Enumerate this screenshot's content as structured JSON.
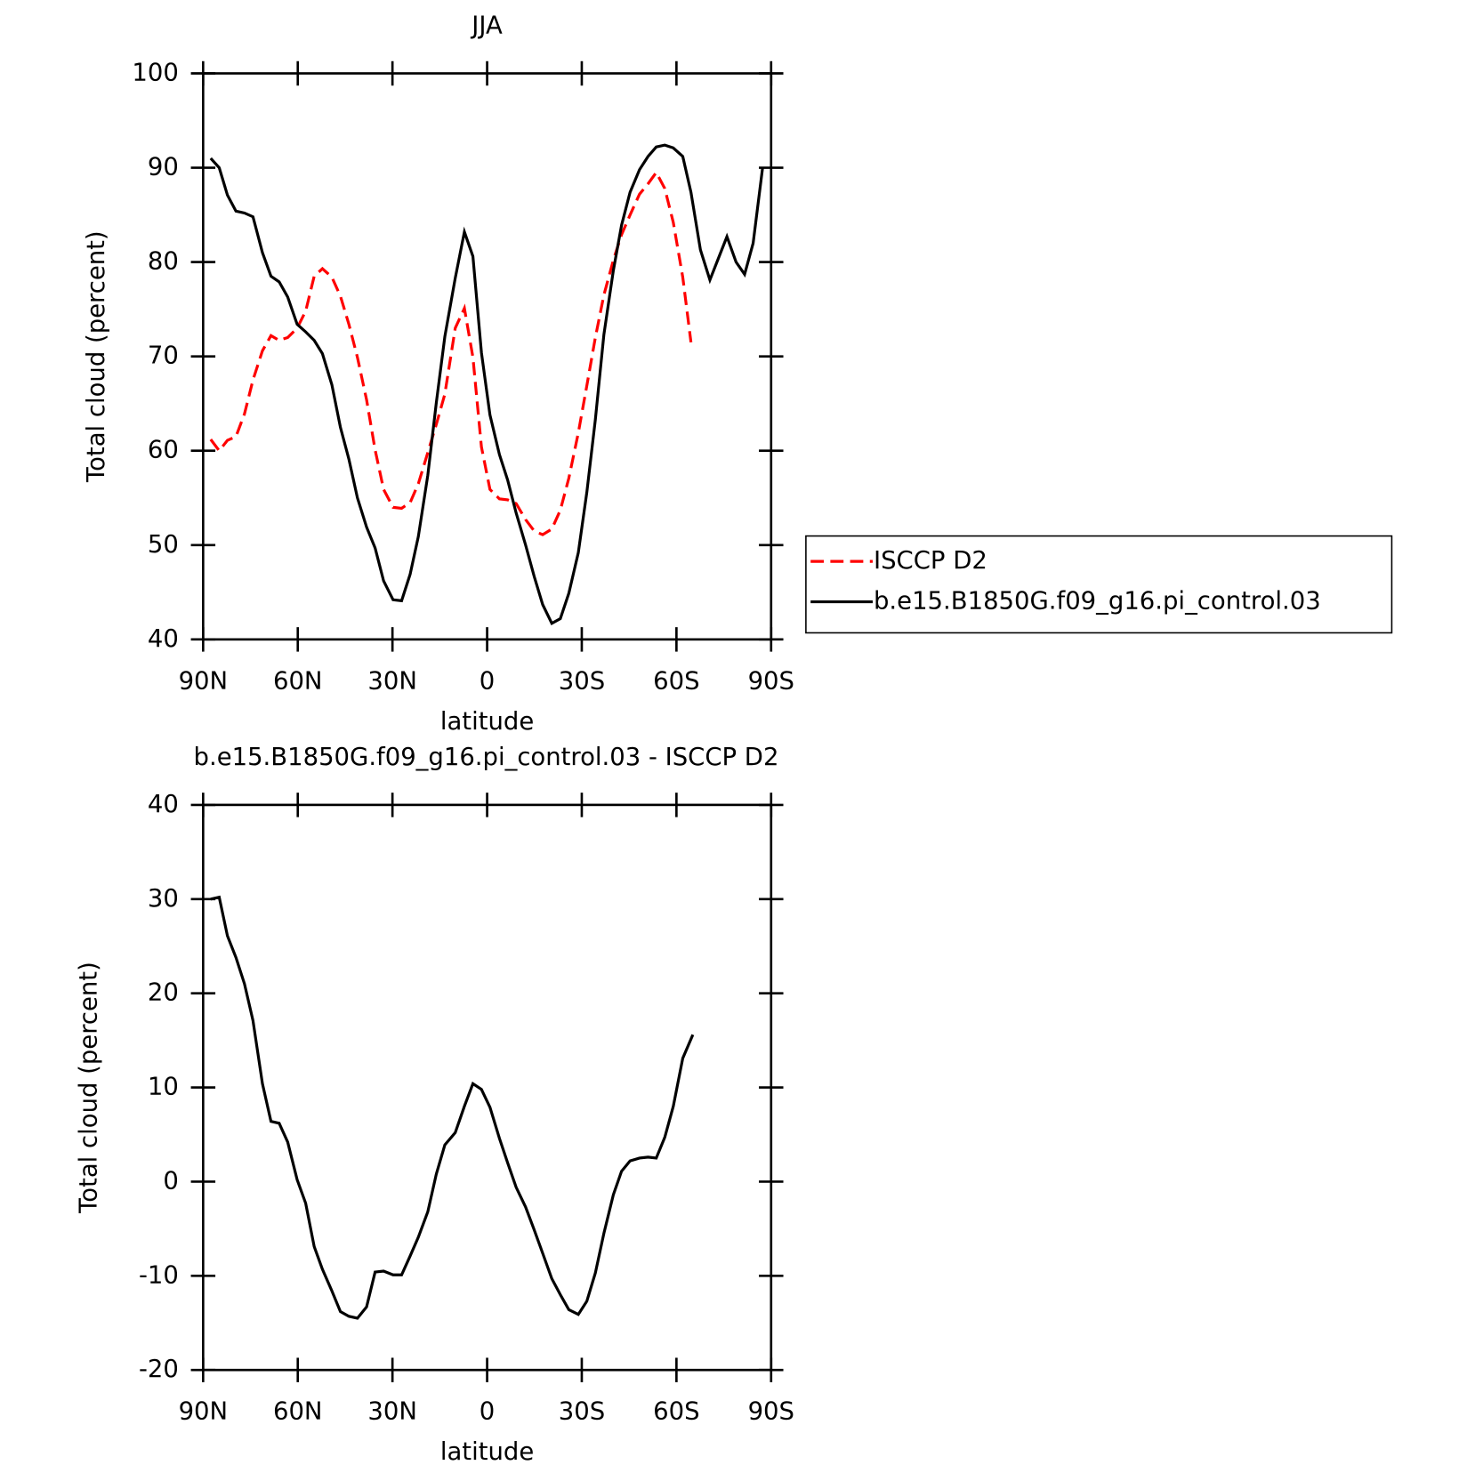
{
  "chart_data": [
    {
      "type": "line",
      "title": "JJA",
      "x_label": "latitude",
      "y_label": "Total cloud (percent)",
      "x": [
        87.6,
        84.9,
        82.3,
        79.6,
        76.9,
        74.2,
        71.2,
        68.5,
        65.9,
        63.2,
        60.2,
        57.5,
        54.8,
        52.2,
        49.2,
        46.5,
        43.8,
        41.1,
        38.2,
        35.5,
        32.8,
        29.8,
        27.1,
        24.4,
        21.8,
        18.8,
        16.1,
        13.4,
        10.1,
        7.2,
        4.5,
        1.8,
        -0.9,
        -3.9,
        -6.5,
        -9.2,
        -12.2,
        -14.9,
        -17.6,
        -20.5,
        -23.2,
        -25.9,
        -28.9,
        -31.6,
        -34.3,
        -37.0,
        -40.0,
        -42.6,
        -45.3,
        -48.3,
        -51.0,
        -53.6,
        -56.3,
        -59.0,
        -62.0,
        -64.6,
        -67.6,
        -70.6,
        -73.3,
        -76.0,
        -78.9,
        -81.6,
        -84.3,
        -87.3
      ],
      "series": [
        {
          "name": "ISCCP D2",
          "color": "#ff0000",
          "style": "dashed",
          "values": [
            61.2,
            60.0,
            61.1,
            61.5,
            63.9,
            67.5,
            70.6,
            72.2,
            71.7,
            72.0,
            73.0,
            74.8,
            78.5,
            79.3,
            78.4,
            76.4,
            73.4,
            69.9,
            65.4,
            60.1,
            55.9,
            54.0,
            53.9,
            54.5,
            56.5,
            59.8,
            62.8,
            66.0,
            73.0,
            75.1,
            69.9,
            60.4,
            55.9,
            54.9,
            54.8,
            54.4,
            52.7,
            51.5,
            51.1,
            51.7,
            53.7,
            57.1,
            61.9,
            66.9,
            72.0,
            76.5,
            80.2,
            82.9,
            85.0,
            87.2,
            88.3,
            89.5,
            87.8,
            84.2,
            78.4,
            71.5,
            null,
            null,
            null,
            null,
            null,
            null,
            null,
            null
          ]
        },
        {
          "name": "b.e15.B1850G.f09_g16.pi_control.03",
          "color": "#000000",
          "style": "solid",
          "values": [
            91.0,
            90.0,
            87.1,
            85.4,
            85.2,
            84.8,
            81.0,
            78.5,
            77.9,
            76.3,
            73.4,
            72.6,
            71.7,
            70.3,
            67.0,
            62.5,
            59.1,
            55.0,
            51.9,
            49.7,
            46.2,
            44.2,
            44.1,
            46.9,
            50.9,
            57.4,
            65.1,
            72.1,
            78.3,
            83.2,
            80.6,
            70.4,
            63.8,
            59.6,
            56.9,
            53.4,
            50.0,
            46.7,
            43.7,
            41.7,
            42.2,
            44.9,
            49.2,
            55.6,
            63.3,
            72.3,
            79.1,
            83.9,
            87.4,
            89.8,
            91.2,
            92.2,
            92.4,
            92.1,
            91.2,
            87.4,
            81.3,
            78.1,
            80.4,
            82.7,
            80.0,
            78.7,
            82.0,
            90.0
          ]
        }
      ],
      "xlim": [
        90,
        -90
      ],
      "xticks": [
        {
          "value": 90,
          "label": "90N"
        },
        {
          "value": 60,
          "label": "60N"
        },
        {
          "value": 30,
          "label": "30N"
        },
        0,
        {
          "value": -30,
          "label": "30S"
        },
        {
          "value": -60,
          "label": "60S"
        },
        {
          "value": -90,
          "label": "90S"
        }
      ],
      "ylim": [
        40,
        100
      ],
      "yticks": [
        40,
        50,
        60,
        70,
        80,
        90,
        100
      ],
      "legend": "right"
    },
    {
      "type": "line",
      "title": "b.e15.B1850G.f09_g16.pi_control.03 - ISCCP D2",
      "x_label": "latitude",
      "y_label": "Total cloud (percent)",
      "x": [
        87.6,
        84.9,
        82.3,
        79.6,
        76.9,
        74.2,
        71.2,
        68.5,
        65.9,
        63.2,
        60.2,
        57.5,
        54.8,
        52.2,
        49.2,
        46.5,
        43.8,
        41.1,
        38.2,
        35.5,
        32.8,
        29.8,
        27.1,
        24.4,
        21.8,
        18.8,
        16.1,
        13.4,
        10.1,
        7.2,
        4.5,
        1.8,
        -0.9,
        -3.9,
        -6.5,
        -9.2,
        -12.2,
        -14.9,
        -17.6,
        -20.5,
        -23.2,
        -25.9,
        -28.9,
        -31.6,
        -34.3,
        -37.0,
        -40.0,
        -42.6,
        -45.3,
        -48.3,
        -51.0,
        -53.6,
        -56.3,
        -59.0,
        -62.0,
        -65.2
      ],
      "series": [
        {
          "color": "#000000",
          "style": "solid",
          "values": [
            30.0,
            30.2,
            26.1,
            23.8,
            21.0,
            17.1,
            10.4,
            6.4,
            6.2,
            4.2,
            0.2,
            -2.3,
            -6.9,
            -9.3,
            -11.6,
            -13.8,
            -14.3,
            -14.5,
            -13.3,
            -9.6,
            -9.5,
            -9.9,
            -9.9,
            -7.9,
            -5.9,
            -3.2,
            0.8,
            3.9,
            5.2,
            8.0,
            10.4,
            9.8,
            7.9,
            4.6,
            2.0,
            -0.6,
            -2.7,
            -5.1,
            -7.6,
            -10.3,
            -12.0,
            -13.6,
            -14.1,
            -12.7,
            -9.7,
            -5.5,
            -1.4,
            1.1,
            2.2,
            2.5,
            2.6,
            2.5,
            4.7,
            8.0,
            13.1,
            15.6
          ]
        }
      ],
      "xlim": [
        90,
        -90
      ],
      "xticks": [
        {
          "value": 90,
          "label": "90N"
        },
        {
          "value": 60,
          "label": "60N"
        },
        {
          "value": 30,
          "label": "30N"
        },
        0,
        {
          "value": -30,
          "label": "30S"
        },
        {
          "value": -60,
          "label": "60S"
        },
        {
          "value": -90,
          "label": "90S"
        }
      ],
      "ylim": [
        -20,
        40
      ],
      "yticks": [
        -20,
        -10,
        0,
        10,
        20,
        30,
        40
      ]
    }
  ]
}
